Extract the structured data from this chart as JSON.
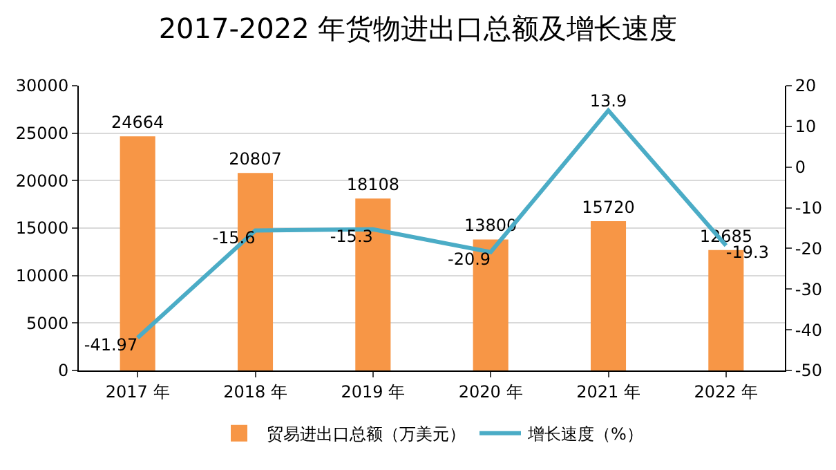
{
  "chart_data": {
    "type": "bar",
    "title": "2017-2022 年货物进出口总额及增长速度",
    "categories": [
      "2017 年",
      "2018 年",
      "2019 年",
      "2020 年",
      "2021 年",
      "2022 年"
    ],
    "series": [
      {
        "name": "贸易进出口总额（万美元）",
        "color": "#f79646",
        "values": [
          24664,
          20807,
          18108,
          13800,
          15720,
          12685
        ]
      },
      {
        "name": "增长速度（%）",
        "type": "line",
        "axis": "y2",
        "color": "#4bacc6",
        "values": [
          -41.97,
          -15.6,
          -15.3,
          -20.9,
          13.9,
          -19.3
        ]
      }
    ],
    "ylim": [
      0,
      30000
    ],
    "yticks": [
      0,
      5000,
      10000,
      15000,
      20000,
      25000,
      30000
    ],
    "y2lim": [
      -50,
      20
    ],
    "y2ticks": [
      -50,
      -40,
      -30,
      -20,
      -10,
      0,
      10,
      20
    ],
    "grid": "y",
    "legend": "bottom",
    "data_labels": true,
    "marker": "none",
    "line_style": "solid"
  }
}
